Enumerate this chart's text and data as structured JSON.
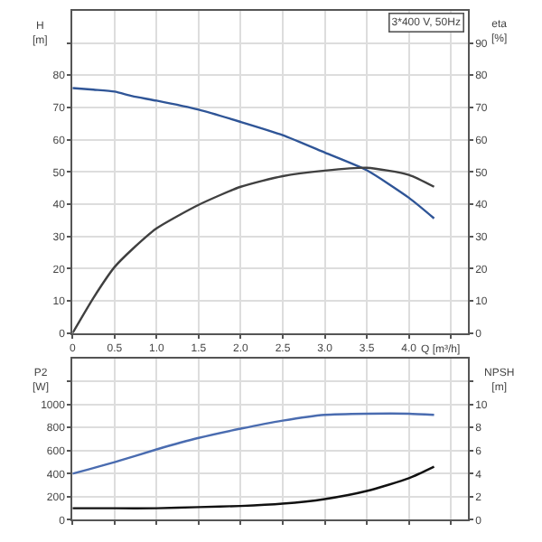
{
  "chart_data": [
    {
      "type": "line",
      "x": [
        0,
        0.25,
        0.5,
        0.71,
        1.0,
        1.5,
        2.0,
        2.5,
        3.0,
        3.5,
        4.0,
        4.3
      ],
      "xlabel": "Q [m³/h]",
      "ylabel": "H\n[m]",
      "y2label": "eta\n[%]",
      "annotations": [
        "3*400 V, 50Hz"
      ],
      "series": [
        {
          "color": "#2f5597",
          "values": [
            76,
            75.5,
            74.9,
            73.5,
            72.1,
            69.3,
            65.5,
            61.4,
            56,
            50.5,
            42,
            35.6
          ]
        },
        {
          "color": "#404040",
          "axis": "y2",
          "values": [
            0,
            11,
            20.5,
            26,
            32.5,
            39.8,
            45.4,
            48.7,
            50.4,
            51.3,
            49.1,
            45.4
          ]
        }
      ],
      "xlim": [
        0,
        4.7
      ],
      "xticks": [
        0,
        0.5,
        {
          "value": 1,
          "label": "1.0"
        },
        1.5,
        {
          "value": 2,
          "label": "2.0"
        },
        2.5,
        {
          "value": 3,
          "label": "3.0"
        },
        3.5,
        {
          "value": 4,
          "label": "4.0"
        },
        {
          "value": 4.5,
          "label": null
        }
      ],
      "ylim": [
        0,
        100
      ],
      "yticks": [
        0,
        10,
        20,
        30,
        40,
        50,
        60,
        70,
        80,
        {
          "value": 90,
          "label": null
        }
      ],
      "y2lim": [
        0,
        100
      ],
      "y2ticks": [
        0,
        10,
        20,
        30,
        40,
        50,
        60,
        70,
        80,
        90
      ],
      "grid": true
    },
    {
      "type": "line",
      "x": [
        0,
        0.5,
        1.0,
        1.5,
        2.0,
        2.5,
        3.0,
        3.5,
        4.0,
        4.3
      ],
      "ylabel": "P2\n[W]",
      "y2label": "NPSH\n[m]",
      "tick_labels": "y",
      "series": [
        {
          "color": "#4a6cb0",
          "values": [
            400,
            500,
            610,
            710,
            790,
            860,
            910,
            920,
            920,
            910
          ]
        },
        {
          "color": "#111111",
          "axis": "y2",
          "values": [
            1.0,
            1.0,
            1.0,
            1.1,
            1.2,
            1.4,
            1.8,
            2.5,
            3.6,
            4.6
          ]
        }
      ],
      "xlim": [
        0,
        4.7
      ],
      "xticks": [
        0,
        0.5,
        1.0,
        1.5,
        2.0,
        2.5,
        3.0,
        3.5,
        4.0,
        4.5
      ],
      "ylim": [
        0,
        1400
      ],
      "yticks": [
        0,
        200,
        400,
        600,
        800,
        1000,
        {
          "value": 1200,
          "label": null
        }
      ],
      "y2lim": [
        0,
        14
      ],
      "y2ticks": [
        0,
        2,
        4,
        6,
        8,
        10,
        {
          "value": 12,
          "label": null
        }
      ],
      "grid": true
    }
  ]
}
